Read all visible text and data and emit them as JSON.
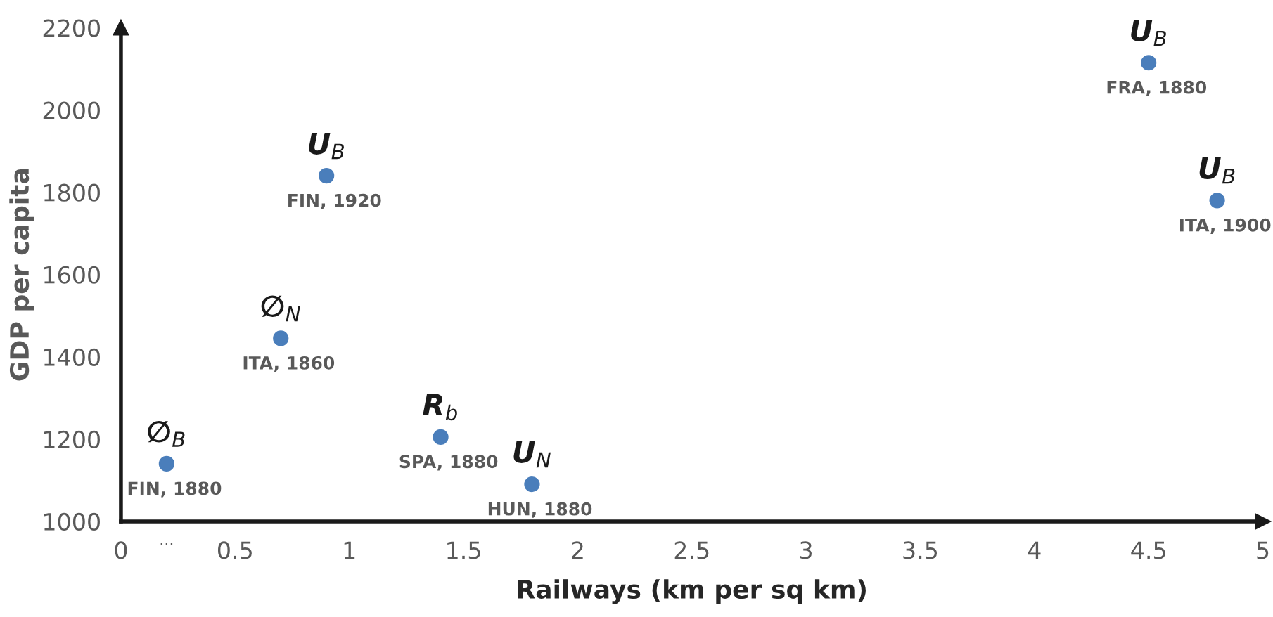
{
  "chart_data": {
    "type": "scatter",
    "xlabel": "Railways (km per sq km)",
    "ylabel": "GDP per capita",
    "x": [
      0.2,
      0.7,
      0.9,
      1.4,
      1.8,
      4.5,
      4.8
    ],
    "values": [
      1140,
      1445,
      1840,
      1205,
      1090,
      2115,
      1780
    ],
    "color": "#4a7ebb",
    "marker": "circle",
    "annotations": [
      {
        "text": "FIN, 1880",
        "x": 0.2,
        "y": 1140
      },
      {
        "text": "ITA, 1860",
        "x": 0.7,
        "y": 1445
      },
      {
        "text": "FIN, 1920",
        "x": 0.9,
        "y": 1840
      },
      {
        "text": "SPA, 1880",
        "x": 1.4,
        "y": 1205
      },
      {
        "text": "HUN, 1880",
        "x": 1.8,
        "y": 1090
      },
      {
        "text": "FRA, 1880",
        "x": 4.5,
        "y": 2115
      },
      {
        "text": "ITA, 1900",
        "x": 4.8,
        "y": 1780
      },
      {
        "text": "∅$_{B}$",
        "x": 0.2,
        "y": 1140
      },
      {
        "text": "∅$_{N}$",
        "x": 0.7,
        "y": 1445
      },
      {
        "text": "U$_{B}$",
        "x": 0.9,
        "y": 1840
      },
      {
        "text": "R$_{b}$",
        "x": 1.4,
        "y": 1205
      },
      {
        "text": "U$_{N}$",
        "x": 1.8,
        "y": 1090
      },
      {
        "text": "U$_{B}$",
        "x": 4.5,
        "y": 2115
      },
      {
        "text": "U$_{B}$",
        "x": 4.8,
        "y": 1780
      },
      "..."
    ],
    "xlim": [
      0,
      5
    ],
    "xticks": [
      0,
      0.5,
      1,
      1.5,
      2,
      2.5,
      3,
      3.5,
      4,
      4.5,
      5
    ],
    "ylim": [
      1000,
      2200
    ],
    "yticks": [
      1000,
      1200,
      1400,
      1600,
      1800,
      2000,
      2200
    ],
    "grid": false,
    "legend": false
  }
}
